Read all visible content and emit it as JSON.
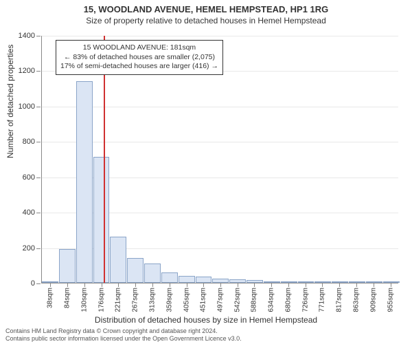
{
  "title": {
    "main": "15, WOODLAND AVENUE, HEMEL HEMPSTEAD, HP1 1RG",
    "sub": "Size of property relative to detached houses in Hemel Hempstead",
    "fontsize_main": 13,
    "fontsize_sub": 12
  },
  "chart": {
    "type": "histogram",
    "xlabel": "Distribution of detached houses by size in Hemel Hempstead",
    "ylabel": "Number of detached properties",
    "label_fontsize": 12,
    "tick_fontsize": 11,
    "background_color": "#ffffff",
    "grid_color": "#e8e8e8",
    "axis_color": "#888888",
    "bar_fill": "#dbe5f4",
    "bar_stroke": "#8aa4c8",
    "refline_color": "#d03030",
    "refline_x_value": 181,
    "ylim": [
      0,
      1400
    ],
    "ytick_step": 200,
    "yticks": [
      0,
      200,
      400,
      600,
      800,
      1000,
      1200,
      1400
    ],
    "x_min": 15,
    "x_max": 978,
    "x_tick_labels": [
      "38sqm",
      "84sqm",
      "130sqm",
      "176sqm",
      "221sqm",
      "267sqm",
      "313sqm",
      "359sqm",
      "405sqm",
      "451sqm",
      "497sqm",
      "542sqm",
      "588sqm",
      "634sqm",
      "680sqm",
      "726sqm",
      "771sqm",
      "817sqm",
      "863sqm",
      "909sqm",
      "955sqm"
    ],
    "x_tick_values": [
      38,
      84,
      130,
      176,
      221,
      267,
      313,
      359,
      405,
      451,
      497,
      542,
      588,
      634,
      680,
      726,
      771,
      817,
      863,
      909,
      955
    ],
    "bin_width": 46,
    "bins": [
      {
        "start": 15,
        "count": 2
      },
      {
        "start": 61,
        "count": 190
      },
      {
        "start": 107,
        "count": 1140
      },
      {
        "start": 153,
        "count": 710
      },
      {
        "start": 199,
        "count": 260
      },
      {
        "start": 245,
        "count": 140
      },
      {
        "start": 291,
        "count": 110
      },
      {
        "start": 337,
        "count": 60
      },
      {
        "start": 383,
        "count": 40
      },
      {
        "start": 429,
        "count": 35
      },
      {
        "start": 475,
        "count": 25
      },
      {
        "start": 521,
        "count": 20
      },
      {
        "start": 567,
        "count": 15
      },
      {
        "start": 613,
        "count": 5
      },
      {
        "start": 659,
        "count": 3
      },
      {
        "start": 705,
        "count": 2
      },
      {
        "start": 751,
        "count": 2
      },
      {
        "start": 797,
        "count": 1
      },
      {
        "start": 843,
        "count": 1
      },
      {
        "start": 889,
        "count": 1
      },
      {
        "start": 935,
        "count": 1
      }
    ]
  },
  "annotation": {
    "lines": [
      "15 WOODLAND AVENUE: 181sqm",
      "← 83% of detached houses are smaller (2,075)",
      "17% of semi-detached houses are larger (416) →"
    ],
    "border_color": "#333333",
    "background": "#ffffff",
    "fontsize": 10.5
  },
  "footer": {
    "line1": "Contains HM Land Registry data © Crown copyright and database right 2024.",
    "line2": "Contains public sector information licensed under the Open Government Licence v3.0.",
    "fontsize": 9,
    "color": "#555555"
  }
}
